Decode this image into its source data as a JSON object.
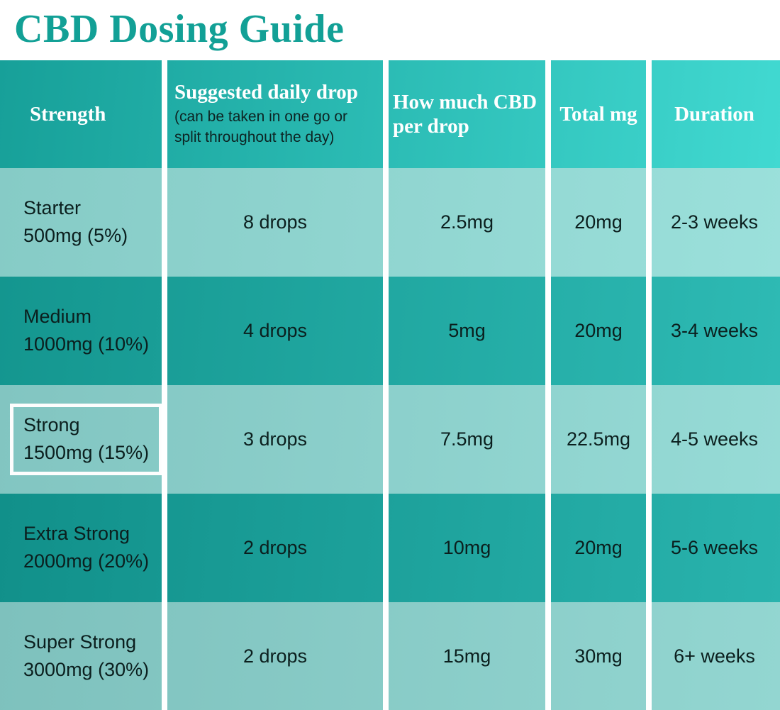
{
  "title": "CBD Dosing Guide",
  "colors": {
    "title_teal": "#12a096",
    "header_gradient_left": "#17a099",
    "header_gradient_right": "#41d9d1",
    "row_light_left": "#82c5c1",
    "row_light_right": "#96dbd6",
    "row_dark_left": "#12948d",
    "row_dark_right": "#2cb8b2",
    "gutter_white": "#ffffff",
    "body_text": "#0b1f1e",
    "header_text": "#ffffff",
    "highlight_border": "#fdfdfd"
  },
  "chart_data": {
    "type": "table",
    "title": "CBD Dosing Guide",
    "header": {
      "strength": "Strength",
      "daily_drop": "Suggested daily drop",
      "daily_drop_note": "(can be taken in one go or split throughout the day)",
      "cbd_per_drop": "How much CBD per drop",
      "total_mg": "Total mg",
      "duration": "Duration"
    },
    "rows": [
      {
        "strength_name": "Starter",
        "strength_detail": "500mg (5%)",
        "daily_drops": "8 drops",
        "cbd_per_drop": "2.5mg",
        "total_mg": "20mg",
        "duration": "2-3 weeks",
        "highlighted": false
      },
      {
        "strength_name": "Medium",
        "strength_detail": "1000mg (10%)",
        "daily_drops": "4 drops",
        "cbd_per_drop": "5mg",
        "total_mg": "20mg",
        "duration": "3-4 weeks",
        "highlighted": false
      },
      {
        "strength_name": "Strong",
        "strength_detail": "1500mg (15%)",
        "daily_drops": "3 drops",
        "cbd_per_drop": "7.5mg",
        "total_mg": "22.5mg",
        "duration": "4-5 weeks",
        "highlighted": true
      },
      {
        "strength_name": "Extra Strong",
        "strength_detail": "2000mg (20%)",
        "daily_drops": "2 drops",
        "cbd_per_drop": "10mg",
        "total_mg": "20mg",
        "duration": "5-6 weeks",
        "highlighted": false
      },
      {
        "strength_name": "Super Strong",
        "strength_detail": "3000mg (30%)",
        "daily_drops": "2 drops",
        "cbd_per_drop": "15mg",
        "total_mg": "30mg",
        "duration": "6+ weeks",
        "highlighted": false
      }
    ]
  }
}
